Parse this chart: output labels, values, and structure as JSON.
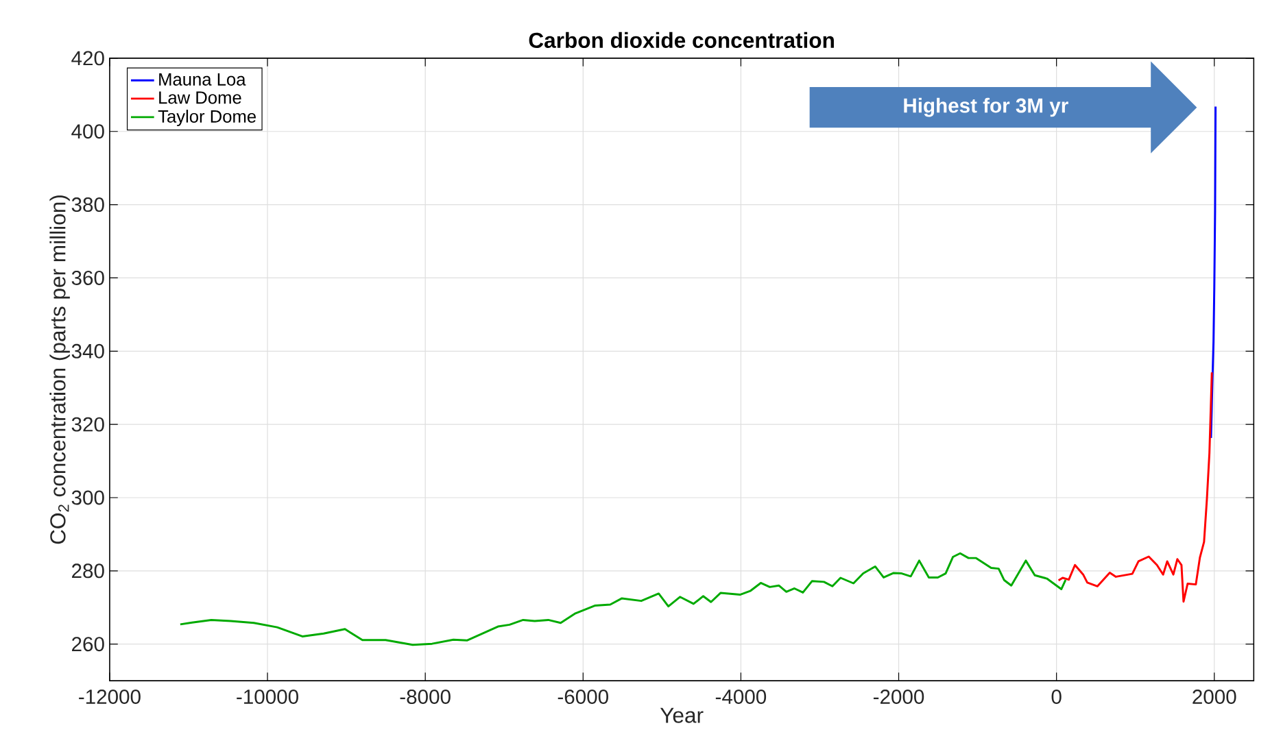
{
  "chart_data": {
    "type": "line",
    "title": "Carbon dioxide concentration",
    "xlabel": "Year",
    "ylabel": "CO$_{2}$ concentration (parts per million)",
    "xlim": [
      -12000,
      2500
    ],
    "ylim": [
      250,
      420
    ],
    "xticks": [
      -12000,
      -10000,
      -8000,
      -6000,
      -4000,
      -2000,
      0,
      2000
    ],
    "yticks": [
      260,
      280,
      300,
      320,
      340,
      360,
      380,
      400,
      420
    ],
    "grid": true,
    "legend": "top left",
    "marker": "none",
    "line_style": "solid",
    "annotations": [
      "Highest for 3M yr"
    ],
    "series": [
      {
        "name": "Mauna Loa",
        "color": "#0000ff",
        "x": [
          1958,
          1974,
          1990,
          2000,
          2010,
          2016
        ],
        "values": [
          316.3,
          330,
          342.6,
          357.4,
          378.4,
          406.8
        ]
      },
      {
        "name": "Law Dome",
        "color": "#ff0000",
        "x": [
          26,
          78,
          156,
          234,
          338,
          390,
          519,
          675,
          753,
          961,
          1039,
          1169,
          1273,
          1351,
          1403,
          1481,
          1532,
          1584,
          1610,
          1662,
          1766,
          1818,
          1870,
          1906,
          1938,
          1969
        ],
        "values": [
          277.4,
          278.1,
          277.6,
          281.6,
          279,
          276.8,
          275.8,
          279.5,
          278.4,
          279.2,
          282.6,
          283.9,
          281.6,
          279,
          282.6,
          279,
          283.2,
          281.6,
          271.6,
          276.5,
          276.3,
          283.7,
          287.9,
          299.5,
          312.1,
          334.2
        ]
      },
      {
        "name": "Taylor Dome",
        "color": "#00aa00",
        "x": [
          -11105,
          -10957,
          -10712,
          -10466,
          -10172,
          -9877,
          -9558,
          -9288,
          -9018,
          -8797,
          -8503,
          -8159,
          -7914,
          -7644,
          -7472,
          -7079,
          -6932,
          -6760,
          -6613,
          -6441,
          -6284,
          -6097,
          -5852,
          -5656,
          -5508,
          -5263,
          -5042,
          -4919,
          -4772,
          -4600,
          -4477,
          -4379,
          -4256,
          -4011,
          -3882,
          -3748,
          -3634,
          -3519,
          -3424,
          -3321,
          -3214,
          -3099,
          -2947,
          -2840,
          -2737,
          -2573,
          -2450,
          -2298,
          -2191,
          -2069,
          -1962,
          -1847,
          -1740,
          -1618,
          -1504,
          -1405,
          -1313,
          -1221,
          -1115,
          -1019,
          -828,
          -733,
          -664,
          -573,
          -389,
          -275,
          -122,
          61,
          115
        ],
        "values": [
          265.4,
          265.9,
          266.6,
          266.3,
          265.8,
          264.6,
          262.1,
          262.9,
          264.1,
          261.1,
          261.1,
          259.8,
          260.1,
          261.2,
          261.0,
          264.8,
          265.3,
          266.6,
          266.3,
          266.6,
          265.8,
          268.4,
          270.5,
          270.8,
          272.5,
          271.8,
          273.8,
          270.3,
          272.9,
          271.0,
          273.1,
          271.5,
          274.0,
          273.5,
          274.5,
          276.7,
          275.6,
          276,
          274.3,
          275.2,
          274.1,
          277.2,
          277,
          275.8,
          278.1,
          276.6,
          279.3,
          281.2,
          278.2,
          279.4,
          279.3,
          278.5,
          282.8,
          278.2,
          278.2,
          279.3,
          283.8,
          284.8,
          283.5,
          283.5,
          280.8,
          280.6,
          277.5,
          276,
          282.8,
          278.8,
          277.9,
          275,
          277.5
        ]
      }
    ]
  }
}
